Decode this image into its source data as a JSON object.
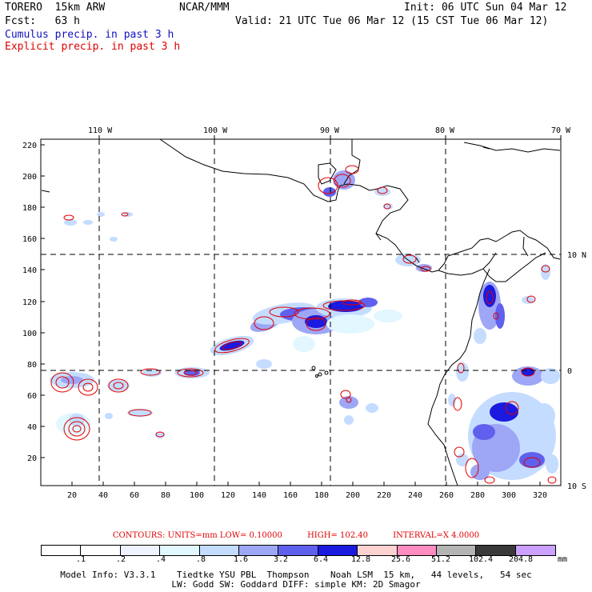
{
  "header": {
    "model": "TORERO  15km ARW",
    "center": "NCAR/MMM",
    "init": "Init: 06 UTC Sun 04 Mar 12",
    "fcst": "Fcst:   63 h",
    "valid": "Valid: 21 UTC Tue 06 Mar 12 (15 CST Tue 06 Mar 12)",
    "cumulus_label": "Cumulus precip. in past 3 h",
    "explicit_label": "Explicit precip. in past 3 h"
  },
  "colors": {
    "cumulus_text": "#1010c0",
    "explicit_text": "#e00000",
    "contour": "#e00000",
    "coast": "#000000"
  },
  "map": {
    "top_lon_labels": [
      "110 W",
      "100 W",
      "90 W",
      "80 W",
      "70 W"
    ],
    "right_lat_labels": [
      "10 N",
      "0",
      "10 S"
    ],
    "y_ticks": [
      "220",
      "200",
      "180",
      "160",
      "140",
      "120",
      "100",
      "80",
      "60",
      "40",
      "20"
    ],
    "x_ticks": [
      "20",
      "40",
      "60",
      "80",
      "100",
      "120",
      "140",
      "160",
      "180",
      "200",
      "220",
      "240",
      "260",
      "280",
      "300",
      "320"
    ],
    "x_range": [
      0,
      333
    ],
    "y_range": [
      0,
      223
    ]
  },
  "contour_info": {
    "title": "CONTOURS:  UNITS=mm  LOW= 0.10000",
    "high": "HIGH=  102.40",
    "interval": "INTERVAL=X  4.0000"
  },
  "colorbar": {
    "labels": [
      ".1",
      ".2",
      ".4",
      ".8",
      "1.6",
      "3.2",
      "6.4",
      "12.8",
      "25.6",
      "51.2",
      "102.4",
      "204.8"
    ],
    "unit": "mm",
    "colors": [
      "#ffffff",
      "#ffffff",
      "#eef3ff",
      "#e2f7ff",
      "#c4dcff",
      "#9ea6f6",
      "#6060ee",
      "#1a1ae0",
      "#ffd2d2",
      "#ff8cc0",
      "#b4b4b4",
      "#3a3a3a",
      "#cca0ff"
    ]
  },
  "footer": {
    "line1": "Model Info: V3.3.1    Tiedtke YSU PBL  Thompson    Noah LSM  15 km,   44 levels,   54 sec",
    "line2": "LW: Godd SW: Goddard DIFF: simple KM: 2D Smagor"
  }
}
